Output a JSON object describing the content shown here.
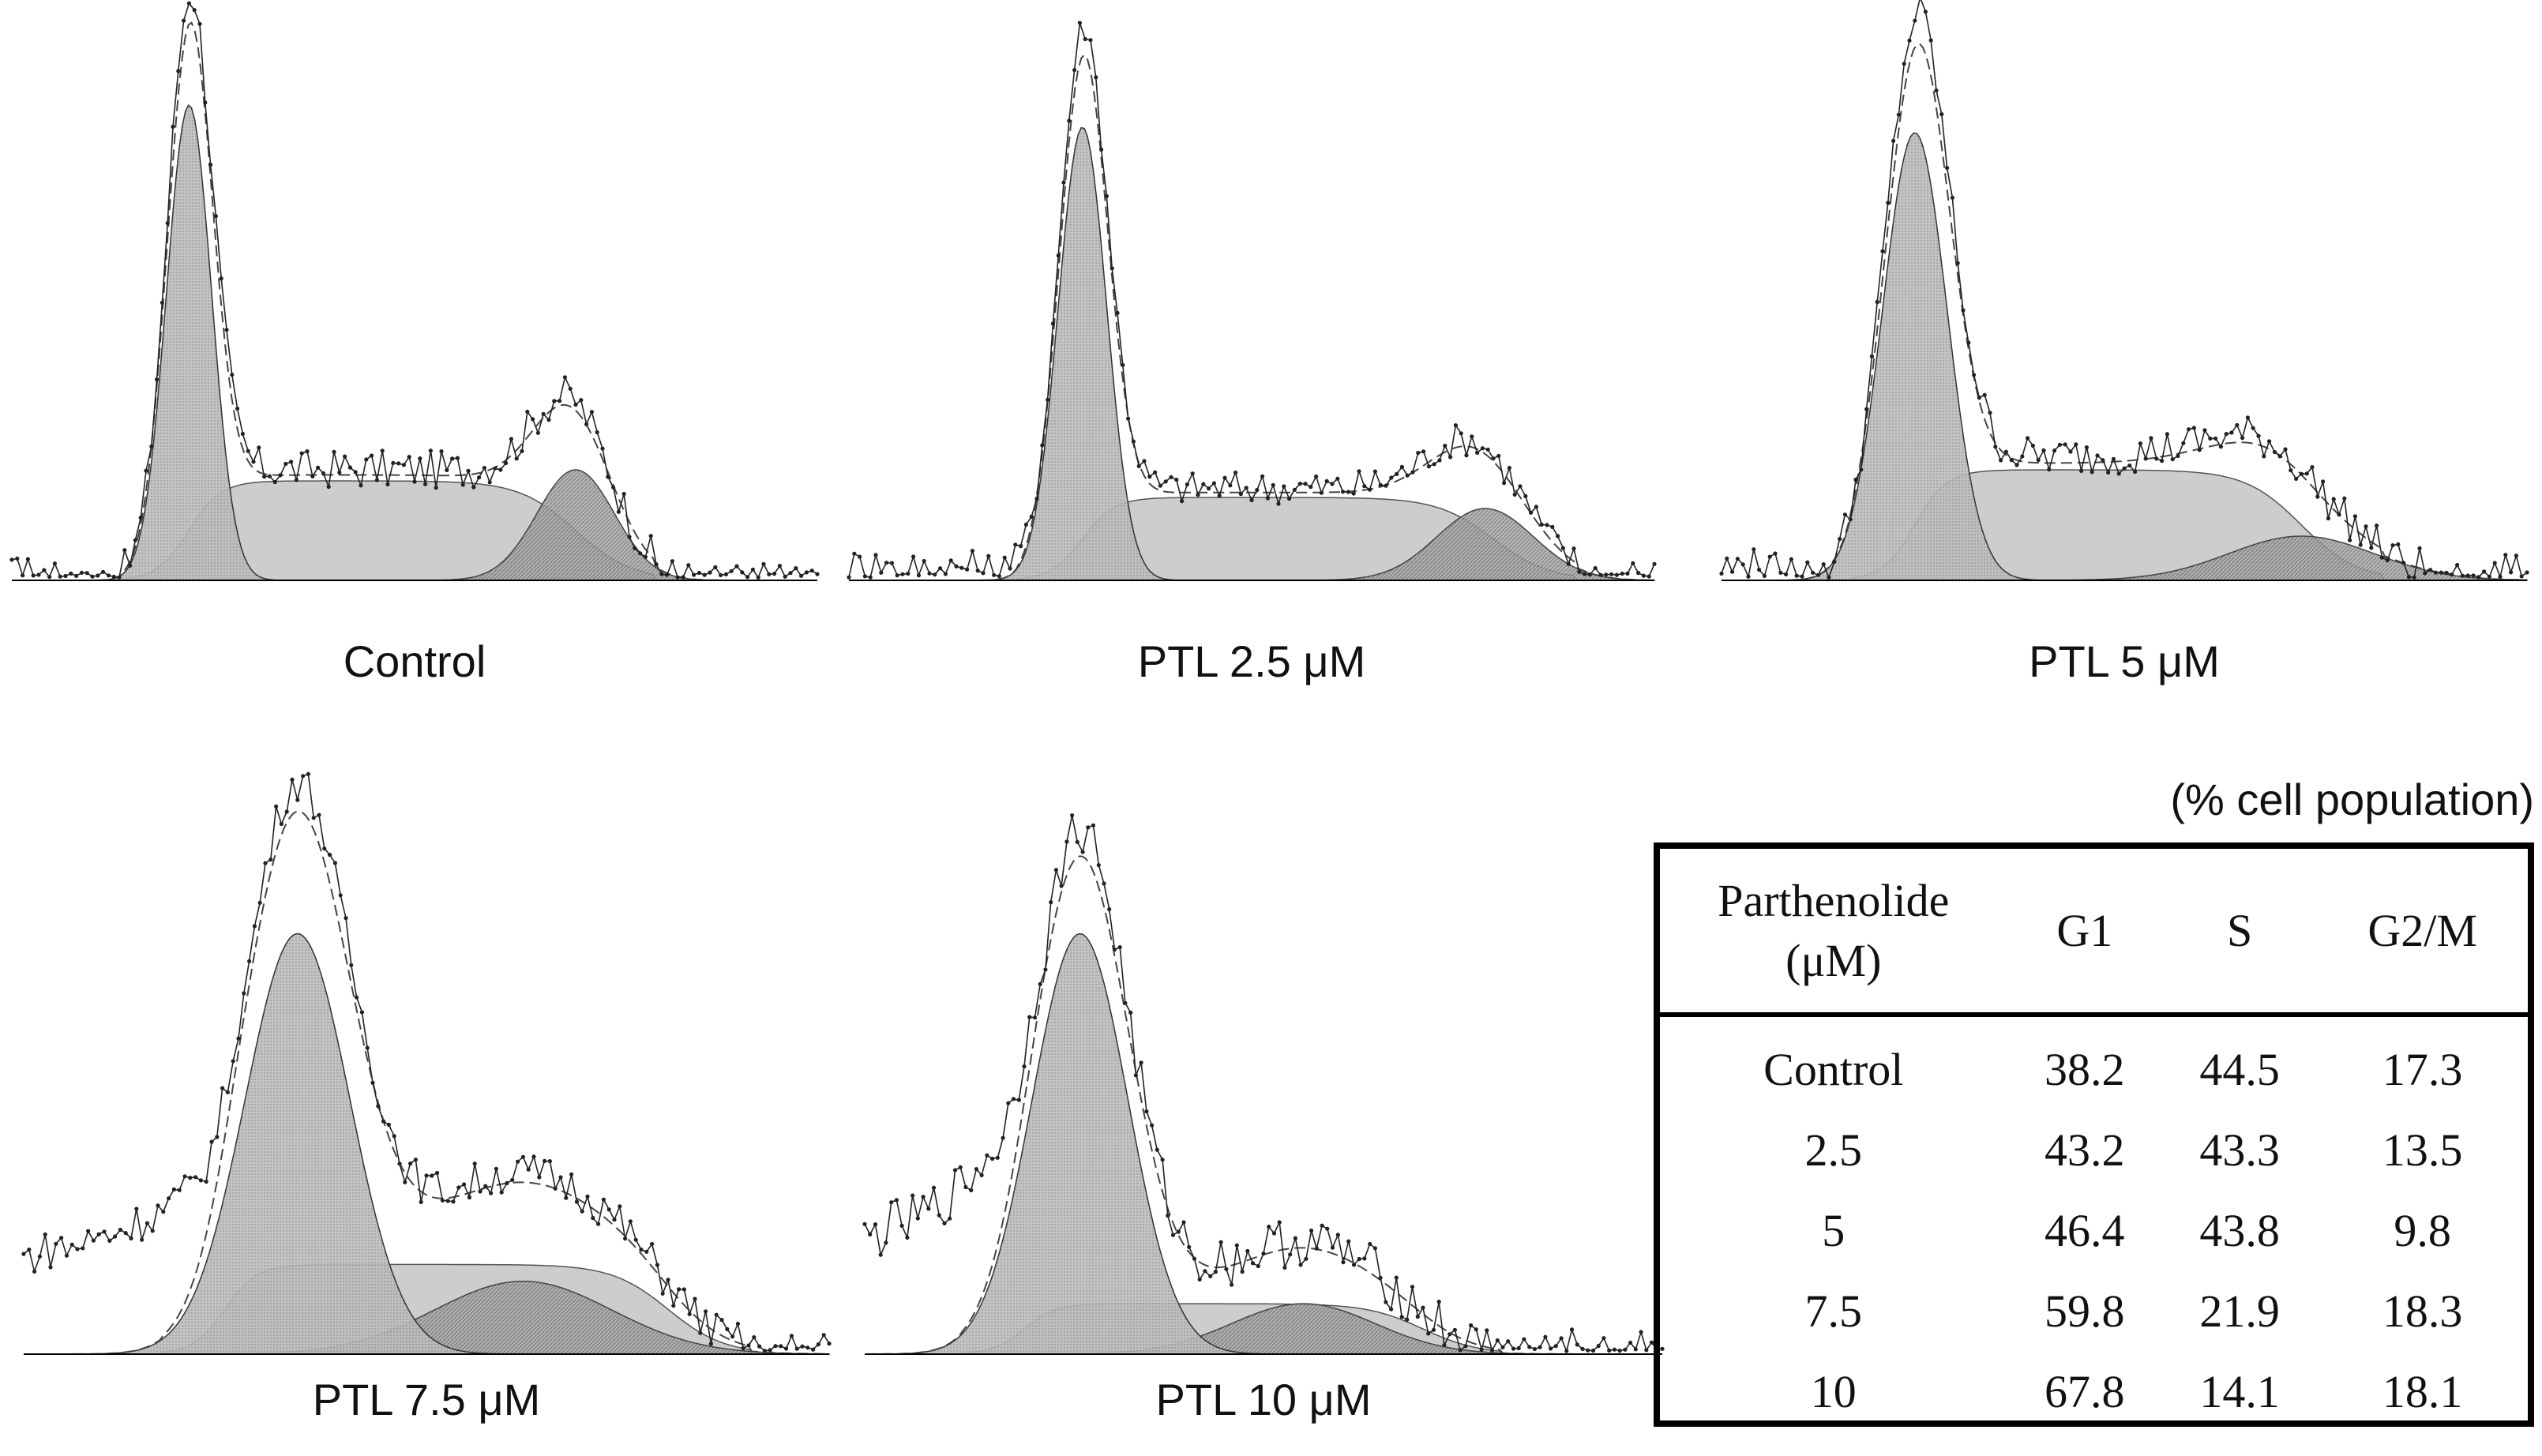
{
  "panels": [
    {
      "label": "Control",
      "g1": {
        "mu": 0.22,
        "sd": 0.028,
        "h": 0.86
      },
      "s": {
        "start": 0.22,
        "end": 0.7,
        "h": 0.18
      },
      "g2": {
        "mu": 0.7,
        "sd": 0.048,
        "h": 0.2
      },
      "pre": {
        "h": 0.0,
        "end": 0.1
      },
      "noise": 0.035
    },
    {
      "label": "PTL 2.5 μM",
      "g1": {
        "mu": 0.29,
        "sd": 0.03,
        "h": 0.82
      },
      "s": {
        "start": 0.29,
        "end": 0.8,
        "h": 0.15
      },
      "g2": {
        "mu": 0.79,
        "sd": 0.06,
        "h": 0.13
      },
      "pre": {
        "h": 0.03,
        "end": 0.22
      },
      "noise": 0.03
    },
    {
      "label": "PTL 5 μM",
      "g1": {
        "mu": 0.24,
        "sd": 0.04,
        "h": 0.81
      },
      "s": {
        "start": 0.24,
        "end": 0.72,
        "h": 0.2
      },
      "g2": {
        "mu": 0.72,
        "sd": 0.09,
        "h": 0.08
      },
      "pre": {
        "h": 0.02,
        "end": 0.12
      },
      "noise": 0.035
    },
    {
      "label": "PTL 7.5 μM",
      "g1": {
        "mu": 0.34,
        "sd": 0.065,
        "h": 0.75
      },
      "s": {
        "start": 0.25,
        "end": 0.8,
        "h": 0.16
      },
      "g2": {
        "mu": 0.62,
        "sd": 0.11,
        "h": 0.13
      },
      "pre": {
        "h": 0.27,
        "end": 0.22
      },
      "noise": 0.035
    },
    {
      "label": "PTL 10 μM",
      "g1": {
        "mu": 0.27,
        "sd": 0.06,
        "h": 0.75
      },
      "s": {
        "start": 0.2,
        "end": 0.7,
        "h": 0.09
      },
      "g2": {
        "mu": 0.55,
        "sd": 0.09,
        "h": 0.09
      },
      "pre": {
        "h": 0.32,
        "end": 0.17
      },
      "noise": 0.045
    }
  ],
  "chart_data": {
    "type": "table",
    "title": "(% cell population)",
    "columns": [
      "Parthenolide (μM)",
      "G1",
      "S",
      "G2/M"
    ],
    "header": {
      "col0_line1": "Parthenolide",
      "col0_line2": "(μM)",
      "col1": "G1",
      "col2": "S",
      "col3": "G2/M"
    },
    "rows": [
      {
        "condition": "Control",
        "g1": "38.2",
        "s": "44.5",
        "g2m": "17.3"
      },
      {
        "condition": "2.5",
        "g1": "43.2",
        "s": "43.3",
        "g2m": "13.5"
      },
      {
        "condition": "5",
        "g1": "46.4",
        "s": "43.8",
        "g2m": "9.8"
      },
      {
        "condition": "7.5",
        "g1": "59.8",
        "s": "21.9",
        "g2m": "18.3"
      },
      {
        "condition": "10",
        "g1": "67.8",
        "s": "14.1",
        "g2m": "18.1"
      }
    ]
  }
}
